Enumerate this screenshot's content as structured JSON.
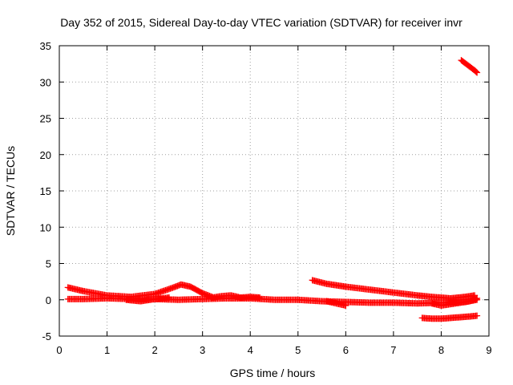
{
  "chart_data": {
    "type": "scatter",
    "title": "Day 352 of 2015, Sidereal Day-to-day VTEC variation (SDTVAR) for receiver invr",
    "xlabel": "GPS time / hours",
    "ylabel": "SDTVAR / TECUs",
    "xlim": [
      0,
      9
    ],
    "ylim": [
      -5,
      35
    ],
    "xticks": [
      "0",
      "1",
      "2",
      "3",
      "4",
      "5",
      "6",
      "7",
      "8",
      "9"
    ],
    "yticks": [
      "-5",
      "0",
      "5",
      "10",
      "15",
      "20",
      "25",
      "30",
      "35"
    ],
    "grid": true,
    "marker": "+",
    "series_color": "#ff0000",
    "series": [
      {
        "x": [
          0.18,
          0.5,
          1.0,
          1.5,
          2.0,
          2.35,
          2.55,
          2.75,
          3.0,
          3.2
        ],
        "y": [
          1.7,
          1.2,
          0.6,
          0.4,
          0.8,
          1.6,
          2.1,
          1.8,
          0.9,
          0.4
        ]
      },
      {
        "x": [
          0.18,
          0.5,
          1.0,
          1.5,
          2.0,
          2.5,
          3.0,
          3.5,
          4.0,
          4.5,
          5.0,
          5.5,
          6.0,
          6.5,
          7.0,
          7.5,
          8.0,
          8.5,
          8.75
        ],
        "y": [
          0.1,
          0.1,
          0.2,
          0.1,
          0.1,
          0.0,
          0.1,
          0.2,
          0.2,
          0.0,
          0.0,
          -0.2,
          -0.3,
          -0.4,
          -0.4,
          -0.5,
          -0.4,
          -0.3,
          0.0
        ]
      },
      {
        "x": [
          1.4,
          1.7,
          2.0,
          2.3
        ],
        "y": [
          0.0,
          -0.2,
          0.1,
          0.3
        ]
      },
      {
        "x": [
          3.2,
          3.4,
          3.6,
          3.8,
          4.0,
          4.2
        ],
        "y": [
          0.3,
          0.5,
          0.6,
          0.3,
          0.4,
          0.3
        ]
      },
      {
        "x": [
          5.3,
          5.6,
          6.0,
          6.5,
          7.0,
          7.5,
          7.8,
          8.0,
          8.2,
          8.5,
          8.7
        ],
        "y": [
          2.7,
          2.2,
          1.8,
          1.4,
          1.0,
          0.6,
          0.4,
          0.3,
          0.2,
          0.4,
          0.6
        ]
      },
      {
        "x": [
          5.6,
          5.8,
          6.0
        ],
        "y": [
          -0.2,
          -0.5,
          -0.8
        ]
      },
      {
        "x": [
          7.6,
          7.8,
          8.0,
          8.2,
          8.4,
          8.6,
          8.75
        ],
        "y": [
          -2.5,
          -2.6,
          -2.6,
          -2.5,
          -2.4,
          -2.3,
          -2.2
        ]
      },
      {
        "x": [
          7.8,
          8.0,
          8.2,
          8.4,
          8.6,
          8.75
        ],
        "y": [
          -0.5,
          -0.8,
          -0.6,
          -0.4,
          -0.2,
          0.2
        ]
      },
      {
        "x": [
          8.42,
          8.5,
          8.6,
          8.7,
          8.75
        ],
        "y": [
          33.0,
          32.6,
          32.1,
          31.6,
          31.3
        ]
      }
    ]
  }
}
